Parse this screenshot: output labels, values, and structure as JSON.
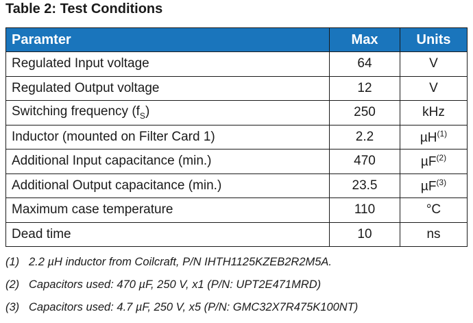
{
  "title": "Table 2: Test Conditions",
  "table": {
    "headers": [
      "Paramter",
      "Max",
      "Units"
    ],
    "rows": [
      {
        "param": "Regulated Input voltage",
        "max": "64",
        "unit": "V"
      },
      {
        "param": "Regulated Output voltage",
        "max": "12",
        "unit": "V"
      },
      {
        "param": "Switching frequency (f",
        "param_sub": "S",
        "param_after": ")",
        "max": "250",
        "unit": "kHz"
      },
      {
        "param": "Inductor (mounted on Filter Card 1)",
        "max": "2.2",
        "unit": "µH",
        "unit_sup": "(1)"
      },
      {
        "param": "Additional Input capacitance (min.)",
        "max": "470",
        "unit": "µF",
        "unit_sup": "(2)"
      },
      {
        "param": "Additional Output capacitance (min.)",
        "max": "23.5",
        "unit": "µF",
        "unit_sup": "(3)"
      },
      {
        "param": "Maximum case temperature",
        "max": "110",
        "unit": "°C"
      },
      {
        "param": "Dead time",
        "max": "10",
        "unit": "ns"
      }
    ]
  },
  "notes": [
    {
      "num": "(1)",
      "text": "2.2 µH inductor from Coilcraft, P/N IHTH1125KZEB2R2M5A."
    },
    {
      "num": "(2)",
      "text": "Capacitors used: 470 µF, 250 V, x1 (P/N: UPT2E471MRD)"
    },
    {
      "num": "(3)",
      "text": "Capacitors used: 4.7 µF, 250 V, x5 (P/N: GMC32X7R475K100NT)"
    }
  ]
}
